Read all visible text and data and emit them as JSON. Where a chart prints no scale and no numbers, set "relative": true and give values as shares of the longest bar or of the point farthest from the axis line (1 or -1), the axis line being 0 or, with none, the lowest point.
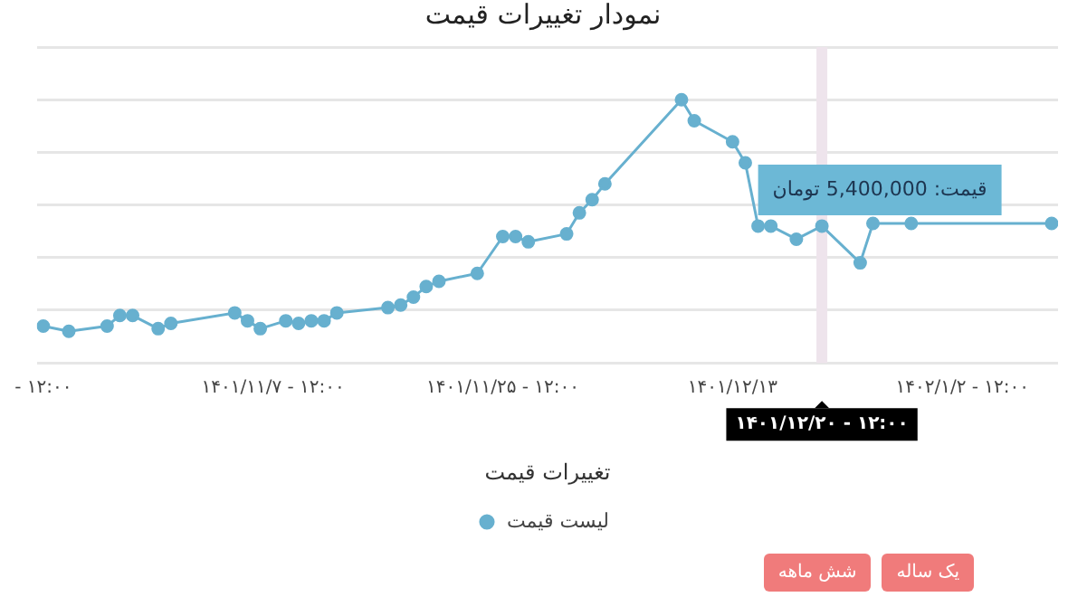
{
  "chart_data": {
    "type": "line",
    "title": "نمودار تغییرات قیمت",
    "xlabel": "تغییرات قیمت",
    "relative": true,
    "x": [
      "--01-09T12:00",
      "--01-11T12:00",
      "--01-14T12:00",
      "--01-15T12:00",
      "--01-16T12:00",
      "--01-18T12:00",
      "--01-19T12:00",
      "--01-24T12:00",
      "--01-25T12:00",
      "--01-26T12:00",
      "--01-28T12:00",
      "--01-29T12:00",
      "--01-30T12:00",
      "--01-31T12:00",
      "--02-01T12:00",
      "--02-05T12:00",
      "--02-06T12:00",
      "--02-07T12:00",
      "--02-08T12:00",
      "--02-09T12:00",
      "--02-12T12:00",
      "--02-14T12:00",
      "--02-15T12:00",
      "--02-16T12:00",
      "--02-19T12:00",
      "--02-20T12:00",
      "--02-21T12:00",
      "--02-22T12:00",
      "--02-28T12:00",
      "--03-01T12:00",
      "--03-04T12:00",
      "--03-05T12:00",
      "--03-06T12:00",
      "--03-07T12:00",
      "--03-09T12:00",
      "--03-11T12:00",
      "--03-14T12:00",
      "--03-15T12:00",
      "--03-18T12:00",
      "--03-29T12:00"
    ],
    "series": [
      {
        "name": "لیست قیمت",
        "color": "#67b0cf",
        "values": [
          0.14,
          0.12,
          0.14,
          0.18,
          0.18,
          0.13,
          0.15,
          0.19,
          0.16,
          0.13,
          0.16,
          0.15,
          0.16,
          0.16,
          0.19,
          0.21,
          0.22,
          0.25,
          0.29,
          0.31,
          0.34,
          0.48,
          0.48,
          0.46,
          0.49,
          0.57,
          0.62,
          0.68,
          1,
          0.92,
          0.84,
          0.76,
          0.52,
          0.52,
          0.47,
          0.52,
          0.38,
          0.53,
          0.53,
          0.53
        ]
      }
    ],
    "xlim": [
      "--01-09",
      "--03-30"
    ],
    "xticks": [
      {
        "value": "--01-09T12:00",
        "label": "- ۱۲:۰۰"
      },
      {
        "value": "--01-27T12:00",
        "label": "۱۴۰۱/۱۱/۷ - ۱۲:۰۰"
      },
      {
        "value": "--02-14T12:00",
        "label": "۱۴۰۱/۱۱/۲۵ - ۱۲:۰۰"
      },
      {
        "value": "--03-04T12:00",
        "label": "۱۴۰۱/۱۲/۱۳"
      },
      {
        "value": "--03-22T12:00",
        "label": "۱۴۰۲/۱/۲ - ۱۲:۰۰"
      }
    ],
    "ref_lines": [
      {
        "axis": "x",
        "value": "--03-11T12:00",
        "label": "۱۴۰۱/۱۲/۲۰ - ۱۲:۰۰",
        "color": "#eee4ec"
      }
    ],
    "annotations": [
      {
        "text": "قیمت: 5,400,000 تومان",
        "x": "--03-11T12:00",
        "y": 0.52
      },
      "یک ساله",
      "شش ماهه"
    ],
    "grid": "y",
    "legend": "bottom",
    "marker": "circle",
    "line_style": "solid"
  }
}
